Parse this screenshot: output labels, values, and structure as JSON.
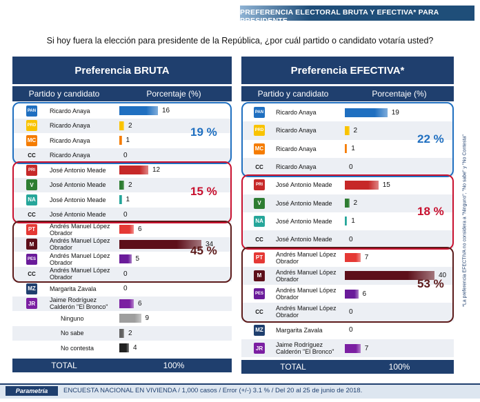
{
  "header": {
    "banner": "PREFERENCIA ELECTORAL BRUTA Y EFECTIVA* PARA PRESIDENTE"
  },
  "question": "Si hoy fuera la elección para presidente de la República, ¿por cuál partido o candidato votaría usted?",
  "column_headers": {
    "party": "Partido y candidato",
    "percent": "Porcentaje (%)"
  },
  "side_note": "*La preferencia EFECTIVA no considera a \"Ninguno\", \"No sabe\" y \"No Contesta\"",
  "footer": {
    "brand": "Parametría",
    "ficha": "ENCUESTA NACIONAL EN VIVIENDA / 1,000 casos / Error (+/-) 3.1 % / Del 20 al 25 de junio de 2018."
  },
  "colors": {
    "navy": "#1f3f6e",
    "blue": "#1f6fc0",
    "red": "#c8102e",
    "maroon": "#5c1a1a",
    "pan": "#1565c0",
    "pri": "#c62828",
    "pvem": "#2e7d32",
    "morena": "#5d0f1a",
    "pes": "#6a1b9a",
    "pt": "#e53935",
    "na": "#26a69a",
    "mc": "#f57c00",
    "prd": "#f9c300",
    "independent": "#7b1fa2"
  },
  "chart_data": [
    {
      "type": "bar",
      "title": "Preferencia BRUTA",
      "total_label": "TOTAL",
      "total_value": "100%",
      "xlim": [
        0,
        40
      ],
      "rows": [
        {
          "logo": "PAN",
          "logo_icon": "pan-logo-icon",
          "name": "Ricardo Anaya",
          "value": 16,
          "color": "#1f6fc0"
        },
        {
          "logo": "PRD",
          "logo_icon": "prd-logo-icon",
          "name": "Ricardo Anaya",
          "value": 2,
          "color": "#f9c300"
        },
        {
          "logo": "MC",
          "logo_icon": "mc-logo-icon",
          "name": "Ricardo Anaya",
          "value": 1,
          "color": "#f57c00"
        },
        {
          "logo": "CC",
          "logo_icon": "coalition-logo-icon",
          "name": "Ricardo Anaya",
          "value": 0,
          "color": "#888888"
        },
        {
          "logo": "PRI",
          "logo_icon": "pri-logo-icon",
          "name": "José Antonio Meade",
          "value": 12,
          "color": "#c62828"
        },
        {
          "logo": "V",
          "logo_icon": "pvem-logo-icon",
          "name": "José Antonio Meade",
          "value": 2,
          "color": "#2e7d32"
        },
        {
          "logo": "NA",
          "logo_icon": "na-logo-icon",
          "name": "José Antonio Meade",
          "value": 1,
          "color": "#26a69a"
        },
        {
          "logo": "CC",
          "logo_icon": "coalition-logo-icon",
          "name": "José Antonio Meade",
          "value": 0,
          "color": "#888888"
        },
        {
          "logo": "PT",
          "logo_icon": "pt-logo-icon",
          "name": "Andrés Manuel López Obrador",
          "value": 6,
          "color": "#e53935"
        },
        {
          "logo": "M",
          "logo_icon": "morena-logo-icon",
          "name": "Andrés Manuel López Obrador",
          "value": 34,
          "color": "#5d0f1a"
        },
        {
          "logo": "PES",
          "logo_icon": "pes-logo-icon",
          "name": "Andrés Manuel López Obrador",
          "value": 5,
          "color": "#6a1b9a"
        },
        {
          "logo": "CC",
          "logo_icon": "coalition-logo-icon",
          "name": "Andrés Manuel López Obrador",
          "value": 0,
          "color": "#888888"
        },
        {
          "logo": "MZ",
          "logo_icon": "independent-logo-icon",
          "name": "Margarita Zavala",
          "value": 0,
          "color": "#1f3f6e"
        },
        {
          "logo": "JR",
          "logo_icon": "independent-logo-icon",
          "name": "Jaime Rodríguez Calderón \"El Bronco\"",
          "value": 6,
          "color": "#7b1fa2"
        },
        {
          "logo": "",
          "logo_icon": "",
          "name": "Ninguno",
          "value": 9,
          "color": "#9e9e9e"
        },
        {
          "logo": "",
          "logo_icon": "",
          "name": "No sabe",
          "value": 2,
          "color": "#616161"
        },
        {
          "logo": "",
          "logo_icon": "",
          "name": "No contesta",
          "value": 4,
          "color": "#212121"
        }
      ],
      "groups": [
        {
          "candidate": "Ricardo Anaya",
          "total": "19 %",
          "color": "#1f6fc0",
          "row_start": 0,
          "row_end": 3
        },
        {
          "candidate": "José Antonio Meade",
          "total": "15 %",
          "color": "#c8102e",
          "row_start": 4,
          "row_end": 7
        },
        {
          "candidate": "Andrés Manuel López Obrador",
          "total": "45 %",
          "color": "#5c1a1a",
          "row_start": 8,
          "row_end": 11
        }
      ]
    },
    {
      "type": "bar",
      "title": "Preferencia EFECTIVA*",
      "total_label": "TOTAL",
      "total_value": "100%",
      "xlim": [
        0,
        40
      ],
      "rows": [
        {
          "logo": "PAN",
          "logo_icon": "pan-logo-icon",
          "name": "Ricardo Anaya",
          "value": 19,
          "color": "#1f6fc0"
        },
        {
          "logo": "PRD",
          "logo_icon": "prd-logo-icon",
          "name": "Ricardo Anaya",
          "value": 2,
          "color": "#f9c300"
        },
        {
          "logo": "MC",
          "logo_icon": "mc-logo-icon",
          "name": "Ricardo Anaya",
          "value": 1,
          "color": "#f57c00"
        },
        {
          "logo": "CC",
          "logo_icon": "coalition-logo-icon",
          "name": "Ricardo Anaya",
          "value": 0,
          "color": "#888888"
        },
        {
          "logo": "PRI",
          "logo_icon": "pri-logo-icon",
          "name": "José Antonio Meade",
          "value": 15,
          "color": "#c62828"
        },
        {
          "logo": "V",
          "logo_icon": "pvem-logo-icon",
          "name": "José Antonio Meade",
          "value": 2,
          "color": "#2e7d32"
        },
        {
          "logo": "NA",
          "logo_icon": "na-logo-icon",
          "name": "José Antonio Meade",
          "value": 1,
          "color": "#26a69a"
        },
        {
          "logo": "CC",
          "logo_icon": "coalition-logo-icon",
          "name": "José Antonio Meade",
          "value": 0,
          "color": "#888888"
        },
        {
          "logo": "PT",
          "logo_icon": "pt-logo-icon",
          "name": "Andrés Manuel López Obrador",
          "value": 7,
          "color": "#e53935"
        },
        {
          "logo": "M",
          "logo_icon": "morena-logo-icon",
          "name": "Andrés Manuel López Obrador",
          "value": 40,
          "color": "#5d0f1a"
        },
        {
          "logo": "PES",
          "logo_icon": "pes-logo-icon",
          "name": "Andrés Manuel López Obrador",
          "value": 6,
          "color": "#6a1b9a"
        },
        {
          "logo": "CC",
          "logo_icon": "coalition-logo-icon",
          "name": "Andrés Manuel López Obrador",
          "value": 0,
          "color": "#888888"
        },
        {
          "logo": "MZ",
          "logo_icon": "independent-logo-icon",
          "name": "Margarita Zavala",
          "value": 0,
          "color": "#1f3f6e"
        },
        {
          "logo": "JR",
          "logo_icon": "independent-logo-icon",
          "name": "Jaime Rodríguez Calderón \"El Bronco\"",
          "value": 7,
          "color": "#7b1fa2"
        }
      ],
      "groups": [
        {
          "candidate": "Ricardo Anaya",
          "total": "22 %",
          "color": "#1f6fc0",
          "row_start": 0,
          "row_end": 3
        },
        {
          "candidate": "José Antonio Meade",
          "total": "18 %",
          "color": "#c8102e",
          "row_start": 4,
          "row_end": 7
        },
        {
          "candidate": "Andrés Manuel López Obrador",
          "total": "53 %",
          "color": "#5c1a1a",
          "row_start": 8,
          "row_end": 11
        }
      ]
    }
  ]
}
